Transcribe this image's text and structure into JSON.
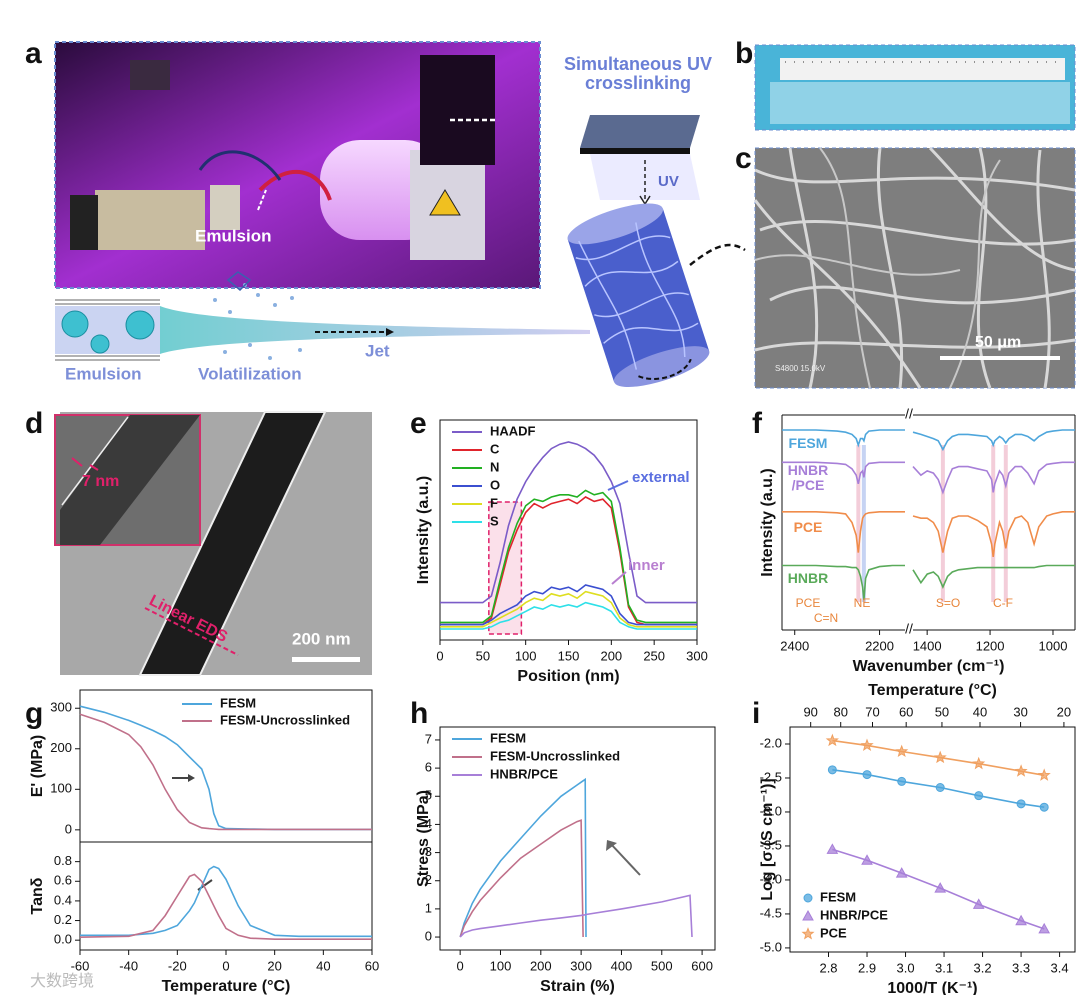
{
  "panel_labels": [
    "a",
    "b",
    "c",
    "d",
    "e",
    "f",
    "g",
    "h",
    "i"
  ],
  "panel_a": {
    "photo_label": "Emulsion",
    "uv_title": "Simultaneous UV crosslinking",
    "uv_label": "UV",
    "schematic_labels": [
      "Emulsion",
      "Volatilization",
      "Jet"
    ]
  },
  "panel_c": {
    "scale_bar": "50 μm",
    "info": "S4800 15.0kV"
  },
  "panel_d": {
    "inset_label": "7 nm",
    "eds_label": "Linear EDS",
    "scale_bar": "200 nm"
  },
  "watermark": "大数跨境",
  "chart_data": [
    {
      "type": "line",
      "xlabel": "Position (nm)",
      "ylabel": "Intensity (a.u.)",
      "xlim": [
        0,
        300
      ],
      "xticks": [
        0,
        50,
        100,
        150,
        200,
        250,
        300
      ],
      "ylim": [
        0,
        100
      ],
      "legend": "upper left",
      "highlight_x": [
        57,
        95
      ],
      "annotations": [
        "external",
        "inner"
      ],
      "x": [
        0,
        10,
        20,
        30,
        40,
        50,
        60,
        70,
        80,
        90,
        100,
        110,
        120,
        130,
        140,
        150,
        160,
        170,
        180,
        190,
        200,
        210,
        220,
        230,
        240,
        250,
        260,
        270,
        280,
        290,
        300
      ],
      "series": [
        {
          "name": "HAADF",
          "color": "#7b5cc8",
          "values": [
            17,
            17,
            17,
            17,
            17,
            17,
            20,
            35,
            52,
            64,
            72,
            78,
            83,
            87,
            89,
            90,
            89,
            87,
            84,
            79,
            72,
            62,
            40,
            20,
            17,
            17,
            17,
            17,
            17,
            17,
            17
          ]
        },
        {
          "name": "C",
          "color": "#e0242c",
          "values": [
            7,
            7,
            7,
            7,
            7,
            7,
            10,
            25,
            40,
            50,
            58,
            62,
            60,
            62,
            63,
            64,
            62,
            65,
            63,
            64,
            60,
            40,
            15,
            8,
            7,
            7,
            7,
            7,
            7,
            7,
            7
          ]
        },
        {
          "name": "N",
          "color": "#22b022",
          "values": [
            8,
            8,
            8,
            8,
            8,
            8,
            11,
            27,
            42,
            53,
            61,
            64,
            63,
            65,
            66,
            66,
            65,
            68,
            66,
            67,
            63,
            42,
            16,
            9,
            8,
            8,
            8,
            8,
            8,
            8,
            8
          ]
        },
        {
          "name": "O",
          "color": "#3b4fd0",
          "values": [
            7,
            7,
            7,
            7,
            7,
            7,
            9,
            12,
            14,
            16,
            20,
            22,
            21,
            24,
            23,
            24,
            22,
            25,
            24,
            23,
            20,
            12,
            8,
            7,
            7,
            7,
            7,
            7,
            7,
            7,
            7
          ]
        },
        {
          "name": "F",
          "color": "#dede20",
          "values": [
            6,
            6,
            6,
            6,
            6,
            6,
            8,
            10,
            12,
            14,
            17,
            19,
            18,
            21,
            20,
            21,
            19,
            22,
            21,
            20,
            17,
            10,
            7,
            6,
            6,
            6,
            6,
            6,
            6,
            6,
            6
          ]
        },
        {
          "name": "S",
          "color": "#2ee0e8",
          "values": [
            5,
            5,
            5,
            5,
            5,
            5,
            6,
            8,
            9,
            11,
            13,
            15,
            14,
            16,
            15,
            16,
            15,
            17,
            16,
            15,
            13,
            8,
            6,
            5,
            5,
            5,
            5,
            5,
            5,
            5,
            5
          ]
        }
      ]
    },
    {
      "type": "line",
      "xlabel": "Wavenumber (cm⁻¹)",
      "ylabel": "Intensity (a.u.)",
      "ylim": [
        0,
        100
      ],
      "legend": "inline",
      "xsegments": [
        {
          "xlim": [
            2430,
            2140
          ],
          "xticks": [
            2400,
            2200
          ]
        },
        {
          "xlim": [
            1445,
            930
          ],
          "xticks": [
            1400,
            1200,
            1000
          ]
        }
      ],
      "bands": [
        2250,
        2237,
        1350,
        1190,
        1150
      ],
      "peak_labels": [
        "PCE",
        "NE",
        "C=N",
        "S=O",
        "C-F"
      ],
      "x": [
        2430,
        2400,
        2350,
        2300,
        2280,
        2265,
        2255,
        2250,
        2245,
        2240,
        2237,
        2233,
        2225,
        2200,
        2170,
        2140,
        1445,
        1420,
        1400,
        1380,
        1365,
        1350,
        1335,
        1320,
        1300,
        1270,
        1240,
        1210,
        1195,
        1190,
        1185,
        1170,
        1160,
        1150,
        1140,
        1120,
        1100,
        1080,
        1060,
        1045,
        1020,
        1000,
        970,
        930
      ],
      "series": [
        {
          "name": "FESM",
          "color": "#4ea6dc",
          "values": [
            93,
            93,
            93,
            92.5,
            92,
            91,
            89,
            86,
            89,
            89,
            88,
            91,
            92.5,
            93,
            93,
            93,
            92,
            91,
            90,
            89,
            88,
            84,
            88,
            90,
            91,
            91,
            90.5,
            90,
            88,
            86,
            88,
            90,
            89,
            87,
            89,
            91,
            91,
            90,
            88,
            90,
            92,
            92.5,
            93,
            93
          ]
        },
        {
          "name": "HNBR /PCE",
          "color": "#a77fd8",
          "values": [
            78,
            78,
            78,
            77.5,
            77,
            75,
            72,
            68,
            73,
            74,
            71,
            76,
            77.5,
            78,
            78,
            78,
            76,
            72,
            74,
            73,
            70,
            64,
            70,
            75,
            76,
            76,
            75,
            74,
            70,
            64,
            68,
            74,
            72,
            67,
            73,
            76,
            76,
            73,
            68,
            74,
            77,
            77.5,
            78,
            78
          ]
        },
        {
          "name": "PCE",
          "color": "#f08c4a",
          "values": [
            55,
            55,
            55,
            54.5,
            54,
            50,
            44,
            36,
            46,
            52,
            53,
            54,
            54.5,
            55,
            55,
            55,
            53,
            52,
            52,
            50,
            46,
            36,
            46,
            52,
            53,
            53,
            51,
            48,
            40,
            34,
            40,
            50,
            46,
            38,
            46,
            52,
            53,
            50,
            40,
            48,
            53,
            54,
            55,
            55
          ]
        },
        {
          "name": "HNBR",
          "color": "#5aaa5a",
          "values": [
            30,
            30,
            30,
            29.5,
            29.5,
            29,
            29,
            28,
            25,
            20,
            14,
            24,
            28,
            29.5,
            30,
            30,
            28,
            22,
            26,
            27,
            25,
            20,
            25,
            27,
            28,
            28.5,
            29,
            29,
            29,
            29,
            29,
            29,
            29,
            29,
            29,
            29,
            29,
            29,
            29,
            29.5,
            30,
            30,
            30,
            30
          ]
        }
      ]
    },
    {
      "type": "line",
      "ylabel": "E' (MPa)",
      "xlim": [
        -60,
        60
      ],
      "ylim": [
        -30,
        345
      ],
      "yticks": [
        0,
        100,
        200,
        300
      ],
      "legend": "upper right",
      "x": [
        -60,
        -50,
        -40,
        -35,
        -30,
        -25,
        -20,
        -15,
        -10,
        -7,
        -5,
        -3,
        0,
        10,
        20,
        30,
        40,
        50,
        60
      ],
      "series": [
        {
          "name": "FESM",
          "color": "#4ea6dc",
          "values": [
            305,
            290,
            270,
            258,
            245,
            230,
            210,
            180,
            150,
            100,
            40,
            10,
            3,
            2,
            1,
            1,
            1,
            1,
            1
          ]
        },
        {
          "name": "FESM-Uncrosslinked",
          "color": "#c0708a",
          "values": [
            285,
            265,
            235,
            205,
            160,
            100,
            50,
            18,
            5,
            3,
            2,
            1,
            1,
            1,
            1,
            1,
            1,
            1,
            1
          ]
        }
      ]
    },
    {
      "type": "line",
      "xlabel": "Temperature (°C)",
      "ylabel": "Tanδ",
      "xlim": [
        -60,
        60
      ],
      "xticks": [
        -60,
        -40,
        -20,
        0,
        20,
        40,
        60
      ],
      "ylim": [
        -0.1,
        1.0
      ],
      "yticks": [
        {
          "value": 0,
          "label": "0.0"
        },
        0.2,
        0.4,
        0.6,
        0.8
      ],
      "x": [
        -60,
        -40,
        -30,
        -25,
        -20,
        -15,
        -13,
        -10,
        -7,
        -5,
        -3,
        0,
        5,
        10,
        20,
        30,
        40,
        50,
        60
      ],
      "series": [
        {
          "name": "FESM",
          "color": "#4ea6dc",
          "values": [
            0.05,
            0.05,
            0.07,
            0.1,
            0.15,
            0.3,
            0.38,
            0.55,
            0.72,
            0.75,
            0.73,
            0.62,
            0.35,
            0.15,
            0.05,
            0.04,
            0.04,
            0.04,
            0.04
          ]
        },
        {
          "name": "FESM-Uncrosslinked",
          "color": "#c0708a",
          "values": [
            0.03,
            0.04,
            0.1,
            0.25,
            0.45,
            0.65,
            0.67,
            0.6,
            0.45,
            0.35,
            0.25,
            0.12,
            0.05,
            0.02,
            0.01,
            0.01,
            0.01,
            0.01,
            0.01
          ]
        }
      ]
    },
    {
      "type": "line",
      "xlabel": "Strain (%)",
      "ylabel": "Stress (MPa)",
      "xlim": [
        -50,
        632
      ],
      "xticks": [
        0,
        100,
        200,
        300,
        400,
        500,
        600
      ],
      "ylim": [
        -0.46,
        7.46
      ],
      "yticks": [
        0,
        1,
        2,
        3,
        4,
        5,
        6,
        7
      ],
      "legend": "upper left",
      "x": [
        0,
        10,
        30,
        50,
        100,
        150,
        200,
        250,
        290,
        300,
        305,
        310,
        312,
        400,
        500,
        570,
        575
      ],
      "series": [
        {
          "name": "FESM",
          "color": "#4ea6dc",
          "values": [
            0,
            0.5,
            1.2,
            1.7,
            2.7,
            3.5,
            4.3,
            5.0,
            5.4,
            5.5,
            5.55,
            5.6,
            0,
            null,
            null,
            null,
            null
          ]
        },
        {
          "name": "FESM-Uncrosslinked",
          "color": "#c0708a",
          "values": [
            0,
            0.4,
            0.9,
            1.3,
            2.1,
            2.8,
            3.3,
            3.8,
            4.1,
            4.15,
            0,
            null,
            null,
            null,
            null,
            null,
            null
          ]
        },
        {
          "name": "HNBR/PCE",
          "color": "#a77fd8",
          "values": [
            0,
            0.15,
            0.25,
            0.3,
            0.4,
            0.5,
            0.6,
            0.68,
            0.75,
            0.77,
            0.78,
            0.79,
            0.8,
            1.0,
            1.25,
            1.48,
            0
          ]
        }
      ]
    },
    {
      "type": "scatter",
      "xlabel": "1000/T (K⁻¹)",
      "ylabel": "Log [σ (S cm⁻¹)]",
      "x2label": "Temperature (°C)",
      "xlim": [
        2.7,
        3.44
      ],
      "xticks": [
        2.8,
        2.9,
        {
          "value": 3,
          "label": "3.0"
        },
        3.1,
        3.2,
        3.3,
        3.4
      ],
      "x2ticks": [
        90,
        80,
        70,
        60,
        50,
        40,
        30,
        20
      ],
      "ylim": [
        -5.06,
        -1.75
      ],
      "yticks": [
        {
          "value": -2,
          "label": "-2.0"
        },
        -2.5,
        {
          "value": -3,
          "label": "-3.0"
        },
        -3.5,
        {
          "value": -4,
          "label": "-4.0"
        },
        -4.5,
        {
          "value": -5,
          "label": "-5.0"
        }
      ],
      "legend": "lower left",
      "x": [
        2.81,
        2.9,
        2.99,
        3.09,
        3.19,
        3.3,
        3.36
      ],
      "series": [
        {
          "name": "FESM",
          "color": "#4ea6dc",
          "marker": "circle",
          "values": [
            -2.38,
            -2.45,
            -2.55,
            -2.64,
            -2.76,
            -2.88,
            -2.93
          ]
        },
        {
          "name": "HNBR/PCE",
          "color": "#a77fd8",
          "marker": "triangle",
          "values": [
            -3.55,
            -3.71,
            -3.9,
            -4.12,
            -4.36,
            -4.6,
            -4.72
          ]
        },
        {
          "name": "PCE",
          "color": "#f0a060",
          "marker": "star",
          "values": [
            -1.95,
            -2.02,
            -2.11,
            -2.2,
            -2.29,
            -2.4,
            -2.46
          ]
        }
      ]
    }
  ]
}
